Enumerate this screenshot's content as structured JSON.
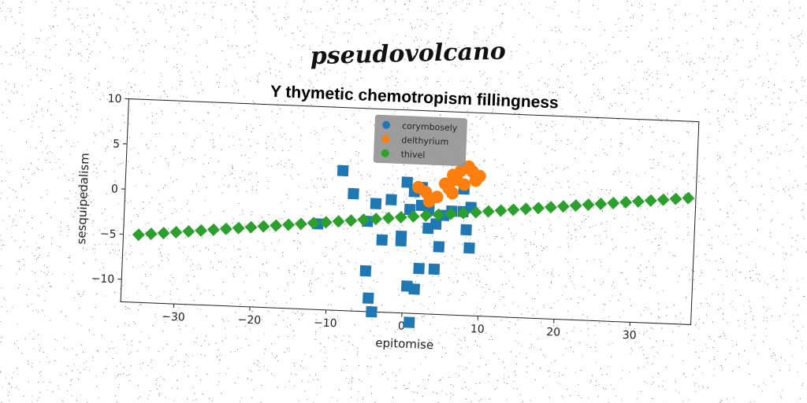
{
  "suptitle": "pseudovolcano",
  "chart_data": {
    "type": "scatter",
    "title": "Y thymetic chemotropism fillingness",
    "xlabel": "epitomise",
    "ylabel": "sesquipedalism",
    "xlim": [
      -37,
      38
    ],
    "ylim": [
      -12.5,
      10
    ],
    "xticks": [
      -30,
      -20,
      -10,
      0,
      10,
      20,
      30
    ],
    "yticks": [
      -10,
      -5,
      0,
      5,
      10
    ],
    "grid": false,
    "legend_position": "top-center",
    "series": [
      {
        "name": "corymbosely",
        "color": "#1f77b4",
        "marker": "square",
        "points": [
          [
            -8.5,
            3.0
          ],
          [
            -7.0,
            0.5
          ],
          [
            -11.5,
            -3.0
          ],
          [
            -4.0,
            -0.5
          ],
          [
            -5.0,
            -2.5
          ],
          [
            -3.0,
            -4.5
          ],
          [
            -0.5,
            -4.0
          ],
          [
            -0.5,
            -4.5
          ],
          [
            -5.0,
            -8.0
          ],
          [
            -4.5,
            -11.0
          ],
          [
            -4.0,
            -12.5
          ],
          [
            1.0,
            -13.5
          ],
          [
            0.5,
            -9.5
          ],
          [
            1.5,
            -9.8
          ],
          [
            2.0,
            -7.5
          ],
          [
            4.0,
            -7.5
          ],
          [
            4.5,
            -5.0
          ],
          [
            3.0,
            -3.0
          ],
          [
            4.0,
            -2.5
          ],
          [
            0.5,
            -1.0
          ],
          [
            -2.0,
            0.0
          ],
          [
            0.0,
            2.0
          ],
          [
            1.0,
            1.0
          ],
          [
            2.0,
            1.5
          ],
          [
            3.0,
            -1.0
          ],
          [
            5.0,
            -1.5
          ],
          [
            6.0,
            -1.0
          ],
          [
            7.5,
            -1.0
          ],
          [
            8.5,
            -0.5
          ],
          [
            8.0,
            -3.0
          ],
          [
            8.5,
            -5.0
          ],
          [
            7.5,
            1.5
          ],
          [
            2.0,
            -0.5
          ]
        ]
      },
      {
        "name": "delthyrium",
        "color": "#ff7f0e",
        "marker": "circle",
        "points": [
          [
            7.0,
            3.5
          ],
          [
            8.0,
            4.0
          ],
          [
            9.5,
            3.0
          ],
          [
            6.5,
            2.5
          ],
          [
            5.5,
            1.5
          ],
          [
            6.0,
            3.0
          ],
          [
            8.5,
            3.5
          ],
          [
            7.5,
            2.0
          ],
          [
            1.5,
            1.5
          ],
          [
            2.5,
            1.0
          ],
          [
            4.0,
            0.5
          ],
          [
            6.0,
            1.0
          ],
          [
            9.0,
            2.5
          ],
          [
            5.0,
            2.0
          ],
          [
            3.0,
            0.0
          ]
        ]
      },
      {
        "name": "thivel",
        "color": "#2ca02c",
        "marker": "diamond",
        "line": {
          "x_start": -35,
          "x_end": 37,
          "y_start": -5.0,
          "y_end": 1.5,
          "count": 45
        }
      }
    ]
  }
}
